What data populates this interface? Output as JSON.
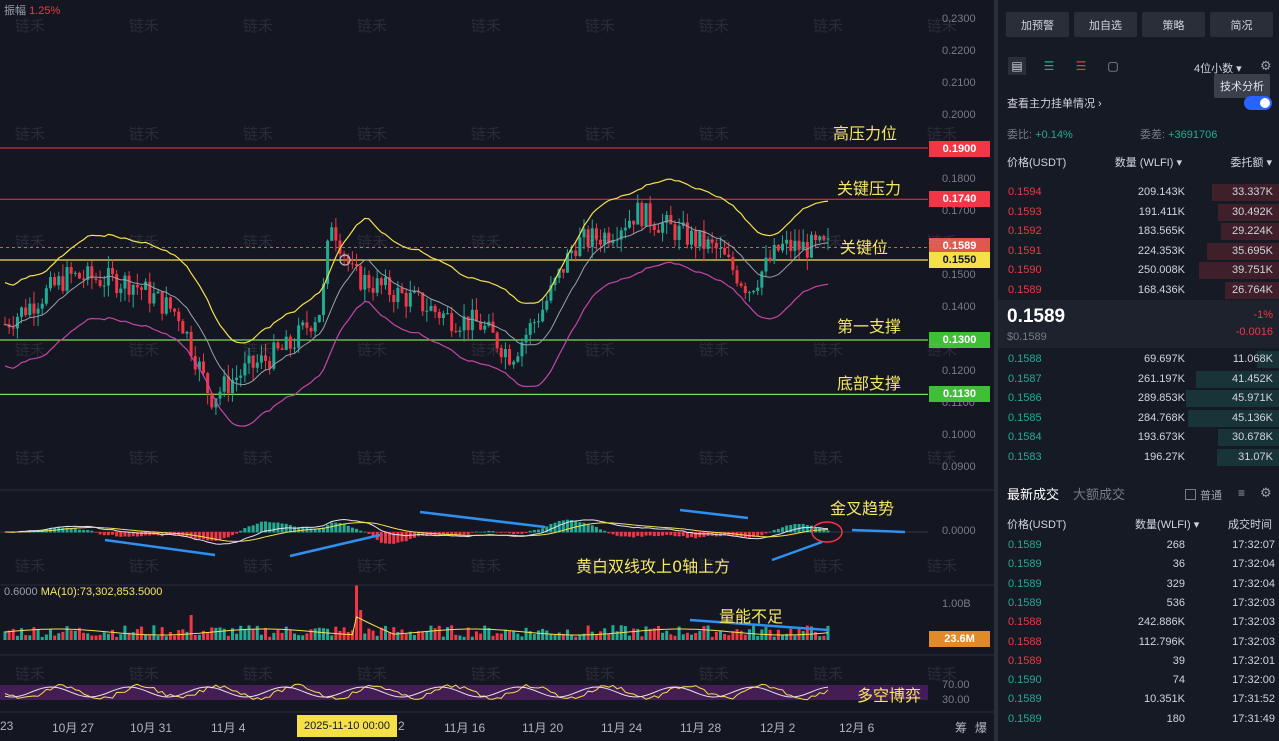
{
  "top_left": {
    "label": "振幅",
    "value": "1.25%"
  },
  "vol_label": {
    "prefix": "0.6000",
    "ma": "MA(10):73,302,853.5000"
  },
  "price_axis": [
    "0.2300",
    "0.2200",
    "0.2100",
    "0.2000",
    "0.1800",
    "0.1700",
    "0.1500",
    "0.1400",
    "0.1200",
    "0.1100",
    "0.1000",
    "0.0900"
  ],
  "macd_axis": "0.0000",
  "vol_axis": [
    "1.00B"
  ],
  "osc_axis": [
    "70.00",
    "30.00"
  ],
  "tags": {
    "high_pressure": "0.1900",
    "key_pressure": "0.1740",
    "last": "0.1589",
    "key_level": "0.1550",
    "support1": "0.1300",
    "bottom_support": "0.1130",
    "volume": "23.6M"
  },
  "annotations": {
    "high_pressure": "高压力位",
    "key_pressure": "关键压力",
    "key_level": "关键位",
    "support1": "第一支撑",
    "bottom_support": "底部支撑",
    "golden_cross": "金叉趋势",
    "macd_note": "黄白双线攻上0轴上方",
    "volume_note": "量能不足",
    "osc_note": "多空博弈"
  },
  "x_axis": [
    "23",
    "10月 27",
    "10月 31",
    "11月 4",
    "11月 16",
    "11月 20",
    "11月 24",
    "11月 28",
    "12月 2",
    "12月 6"
  ],
  "x_selected": "2025-11-10 00:00",
  "x_selected_suffix": "2",
  "x_corner": [
    "筹",
    "爆"
  ],
  "watermark": "链禾",
  "sidebar": {
    "buttons": [
      "加预警",
      "加自选",
      "策略",
      "简况"
    ],
    "decimals": "4位小数",
    "tooltip": "技术分析",
    "main_force": "查看主力挂单情况",
    "ratio_label": "委比",
    "ratio_value": "+0.14%",
    "diff_label": "委差",
    "diff_value": "+3691706",
    "ob_headers": [
      "价格(USDT)",
      "数量 (WLFI)",
      "委托额"
    ],
    "asks": [
      {
        "price": "0.1594",
        "qty": "209.143K",
        "amt": "33.337K",
        "fill": 0.42
      },
      {
        "price": "0.1593",
        "qty": "191.411K",
        "amt": "30.492K",
        "fill": 0.38
      },
      {
        "price": "0.1592",
        "qty": "183.565K",
        "amt": "29.224K",
        "fill": 0.36
      },
      {
        "price": "0.1591",
        "qty": "224.353K",
        "amt": "35.695K",
        "fill": 0.45
      },
      {
        "price": "0.1590",
        "qty": "250.008K",
        "amt": "39.751K",
        "fill": 0.5
      },
      {
        "price": "0.1589",
        "qty": "168.436K",
        "amt": "26.764K",
        "fill": 0.34
      }
    ],
    "last_price": "0.1589",
    "last_price_sub": "$0.1589",
    "last_change_pct": "-1%",
    "last_change": "-0.0016",
    "bids": [
      {
        "price": "0.1588",
        "qty": "69.697K",
        "amt": "11.068K",
        "fill": 0.14
      },
      {
        "price": "0.1587",
        "qty": "261.197K",
        "amt": "41.452K",
        "fill": 0.52
      },
      {
        "price": "0.1586",
        "qty": "289.853K",
        "amt": "45.971K",
        "fill": 0.58
      },
      {
        "price": "0.1585",
        "qty": "284.768K",
        "amt": "45.136K",
        "fill": 0.57
      },
      {
        "price": "0.1584",
        "qty": "193.673K",
        "amt": "30.678K",
        "fill": 0.38
      },
      {
        "price": "0.1583",
        "qty": "196.27K",
        "amt": "31.07K",
        "fill": 0.39
      }
    ],
    "trade_tabs": [
      "最新成交",
      "大额成交"
    ],
    "normal_label": "普通",
    "trade_headers": [
      "价格(USDT)",
      "数量(WLFI)",
      "成交时间"
    ],
    "trades": [
      {
        "price": "0.1589",
        "qty": "268",
        "time": "17:32:07",
        "side": "buy"
      },
      {
        "price": "0.1589",
        "qty": "36",
        "time": "17:32:04",
        "side": "buy"
      },
      {
        "price": "0.1589",
        "qty": "329",
        "time": "17:32:04",
        "side": "buy"
      },
      {
        "price": "0.1589",
        "qty": "536",
        "time": "17:32:03",
        "side": "buy"
      },
      {
        "price": "0.1588",
        "qty": "242.886K",
        "time": "17:32:03",
        "side": "sell"
      },
      {
        "price": "0.1588",
        "qty": "112.796K",
        "time": "17:32:03",
        "side": "sell"
      },
      {
        "price": "0.1589",
        "qty": "39",
        "time": "17:32:01",
        "side": "sell"
      },
      {
        "price": "0.1590",
        "qty": "74",
        "time": "17:32:00",
        "side": "buy"
      },
      {
        "price": "0.1589",
        "qty": "10.351K",
        "time": "17:31:52",
        "side": "buy"
      },
      {
        "price": "0.1589",
        "qty": "180",
        "time": "17:31:49",
        "side": "buy"
      }
    ]
  },
  "colors": {
    "up": "#22ab94",
    "down": "#f23645",
    "accent": "#f5e663"
  }
}
